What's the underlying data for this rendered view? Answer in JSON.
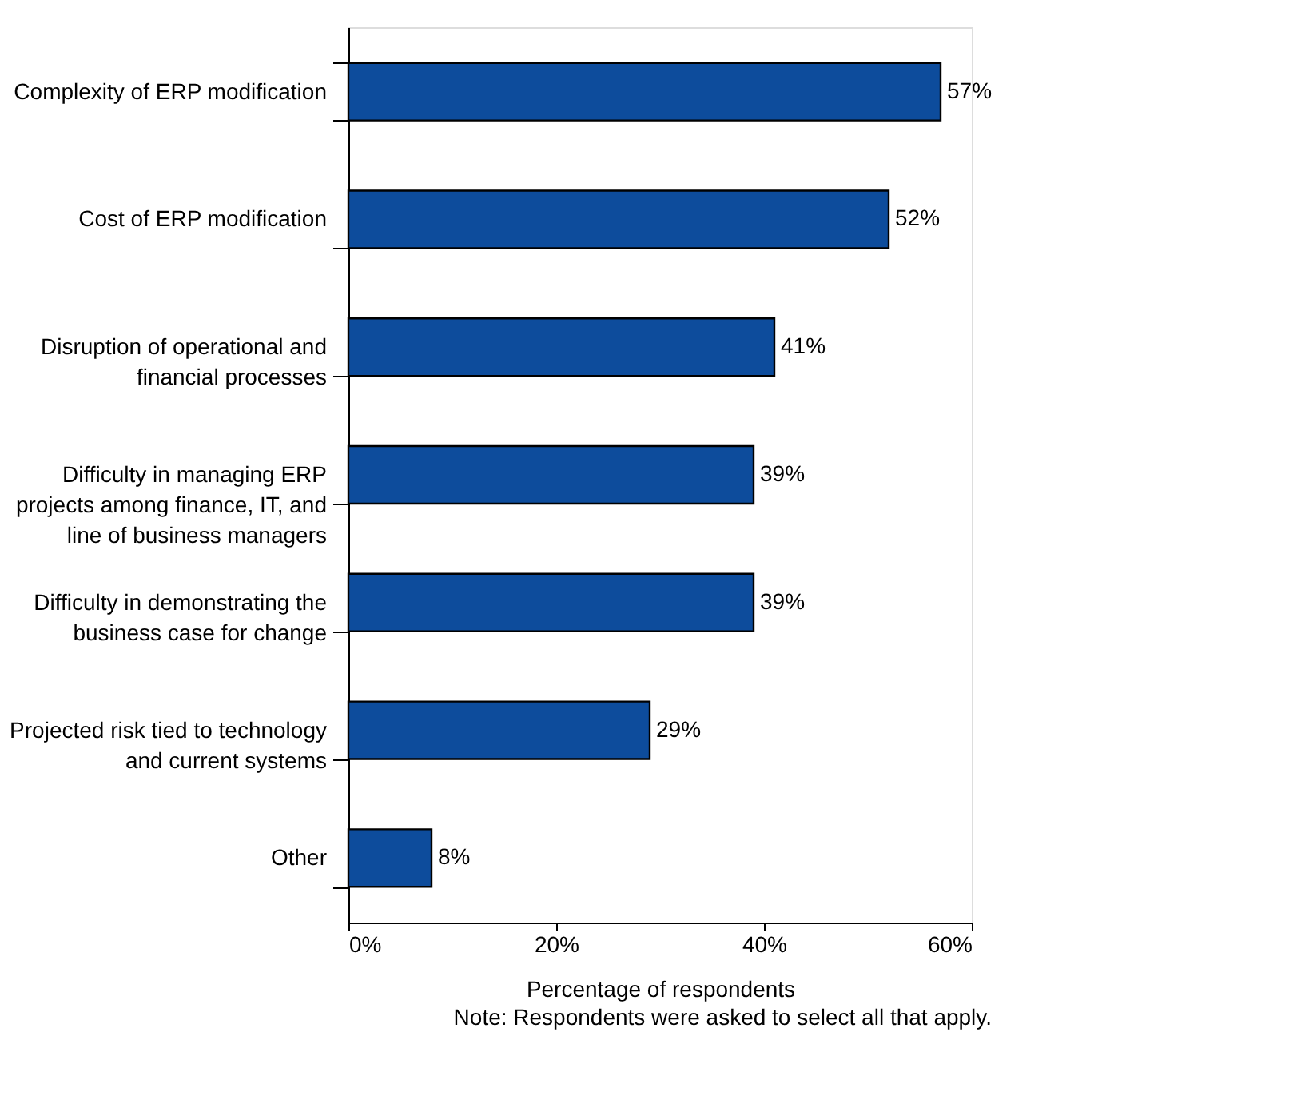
{
  "chart_data": {
    "type": "bar",
    "orientation": "horizontal",
    "categories": [
      "Complexity of ERP modification",
      "Cost of ERP modification",
      "Disruption of operational and\nfinancial processes",
      "Difficulty in managing ERP\nprojects among finance, IT, and\nline of business managers",
      "Difficulty in demonstrating the\nbusiness case for change",
      "Projected risk tied to technology\nand current systems",
      "Other"
    ],
    "values": [
      57,
      52,
      41,
      39,
      39,
      29,
      8
    ],
    "value_labels": [
      "57%",
      "52%",
      "41%",
      "39%",
      "39%",
      "29%",
      "8%"
    ],
    "color": "#0d4c9c",
    "xlim": [
      0,
      60
    ],
    "xticks": [
      {
        "value": 0,
        "label": "0%"
      },
      {
        "value": 20,
        "label": "20%"
      },
      {
        "value": 40,
        "label": "40%"
      },
      {
        "value": 60,
        "label": "60%"
      }
    ],
    "xlabel": "Percentage of respondents",
    "annotations": [
      "Note: Respondents were asked to select all that apply."
    ],
    "grid": false
  }
}
